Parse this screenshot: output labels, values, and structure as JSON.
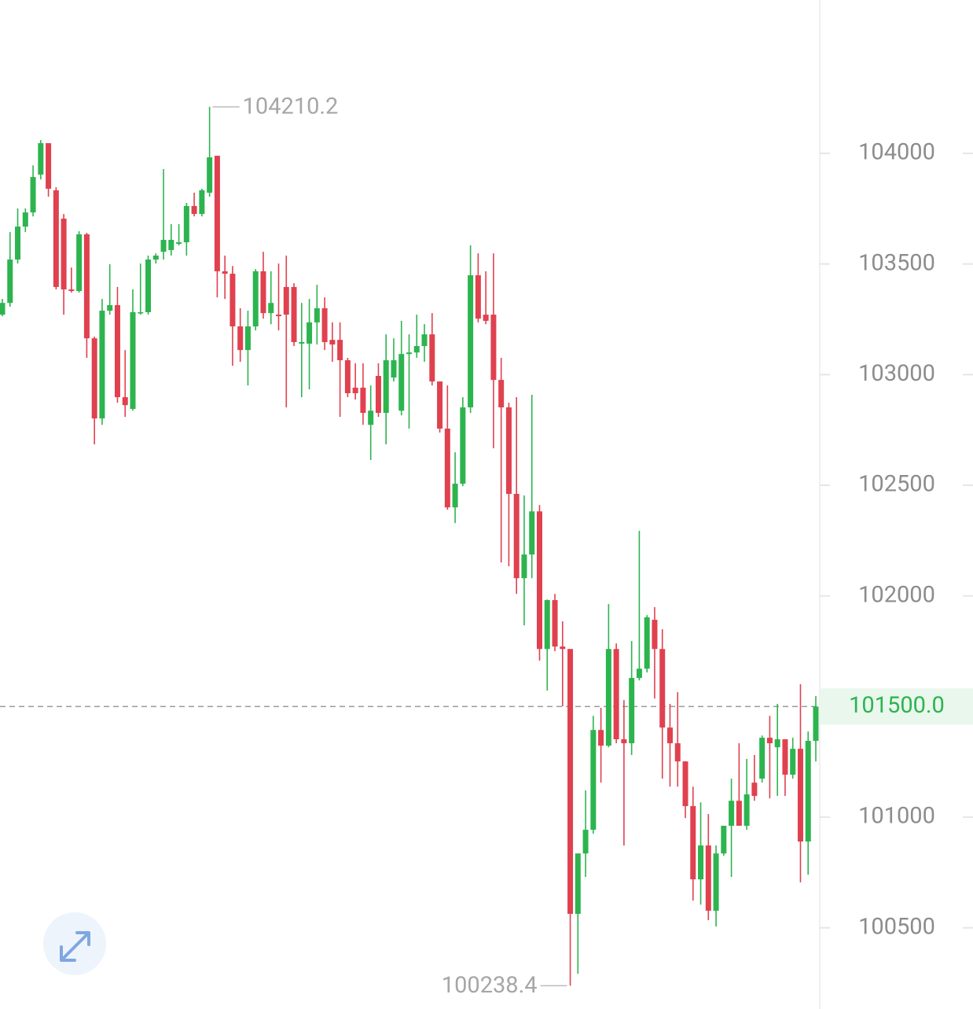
{
  "chart_data": {
    "type": "candlestick",
    "up_color": "#2db44f",
    "down_color": "#e0414f",
    "ylim": [
      100133,
      104693
    ],
    "yticks": [
      100500,
      101000,
      101500,
      102000,
      102500,
      103000,
      103500,
      104000
    ],
    "open": [
      103271,
      103324,
      103520,
      103669,
      103733,
      103904,
      104046,
      103833,
      103705,
      103385,
      103378,
      103634,
      103164,
      102802,
      103289,
      103314,
      102898,
      102845,
      103278,
      103282,
      103520,
      103555,
      103563,
      103591,
      103598,
      103762,
      103726,
      103822,
      103989,
      103467,
      103456,
      103218,
      103111,
      103218,
      103467,
      103278,
      103271,
      103396,
      103396,
      103140,
      103140,
      103236,
      103300,
      103157,
      103157,
      103065,
      102941,
      102941,
      102773,
      102994,
      102827,
      102987,
      102837,
      103093,
      103100,
      103129,
      103182,
      102969,
      102756,
      102400,
      102507,
      102852,
      103449,
      103271,
      103271,
      102976,
      102852,
      102461,
      102080,
      102187,
      102382,
      101760,
      101981,
      101771,
      101760,
      100563,
      100836,
      100943,
      101394,
      101323,
      101760,
      101352,
      101334,
      101629,
      101671,
      101892,
      101760,
      101405,
      101334,
      101252,
      101050,
      100719,
      100872,
      100577,
      100836,
      100961,
      101074,
      100961,
      101156,
      101174,
      101359,
      101316,
      101352,
      101192,
      101309,
      100890,
      101345
    ],
    "high": [
      103342,
      103644,
      103751,
      103751,
      103946,
      104060,
      104046,
      103847,
      103726,
      103484,
      103648,
      103641,
      103172,
      103342,
      103499,
      103396,
      103111,
      103385,
      103502,
      103538,
      103548,
      103929,
      103680,
      103680,
      103776,
      103822,
      103840,
      104210.2,
      103989,
      103538,
      103491,
      103300,
      103289,
      103477,
      103555,
      103467,
      103502,
      103538,
      103413,
      103324,
      103342,
      103406,
      103349,
      103236,
      103236,
      103076,
      103051,
      103051,
      102951,
      103051,
      103182,
      103164,
      103243,
      103182,
      103271,
      103228,
      103278,
      102969,
      102951,
      102649,
      102898,
      103584,
      103548,
      103467,
      103548,
      103076,
      102873,
      102898,
      102454,
      102909,
      102411,
      101984,
      102009,
      101885,
      101760,
      100836,
      101121,
      101458,
      101494,
      101963,
      101785,
      101529,
      101796,
      102294,
      101913,
      101949,
      101849,
      101512,
      101565,
      101252,
      101138,
      101067,
      101014,
      100872,
      100961,
      101174,
      101334,
      101263,
      101281,
      101369,
      101458,
      101512,
      101352,
      101359,
      101601,
      101387,
      101547
    ],
    "low": [
      103264,
      103307,
      103502,
      103644,
      103715,
      103882,
      103804,
      103385,
      103271,
      103371,
      103371,
      103076,
      102685,
      102773,
      103271,
      102873,
      102809,
      102837,
      103271,
      103271,
      103502,
      103520,
      103538,
      103584,
      103538,
      103715,
      103715,
      103804,
      103349,
      103342,
      103040,
      103058,
      102951,
      103200,
      103253,
      103228,
      103200,
      102852,
      103129,
      102898,
      102933,
      103136,
      103111,
      103058,
      102809,
      102898,
      102887,
      102773,
      102614,
      102809,
      102685,
      102969,
      102816,
      102756,
      103076,
      103058,
      102951,
      102738,
      102390,
      102329,
      102496,
      102827,
      103236,
      103228,
      102667,
      102151,
      102134,
      102009,
      101867,
      102080,
      101707,
      101572,
      101750,
      101501,
      100238.4,
      100292,
      100730,
      100925,
      101156,
      101316,
      101334,
      100872,
      101281,
      101618,
      101654,
      101536,
      101174,
      101138,
      101138,
      100996,
      100623,
      100605,
      100534,
      100506,
      100826,
      100730,
      100961,
      100943,
      101074,
      101156,
      101085,
      101096,
      101096,
      101174,
      100705,
      100740,
      101252
    ],
    "close": [
      103324,
      103520,
      103669,
      103733,
      103893,
      104046,
      103840,
      103396,
      103385,
      103378,
      103634,
      103164,
      102802,
      103289,
      103314,
      102898,
      102862,
      103282,
      103282,
      103520,
      103538,
      103609,
      103609,
      103598,
      103762,
      103726,
      103833,
      103982,
      103467,
      103456,
      103218,
      103111,
      103218,
      103467,
      103278,
      103324,
      103264,
      103271,
      103147,
      103147,
      103236,
      103300,
      103147,
      103136,
      103065,
      102916,
      102916,
      102827,
      102837,
      102827,
      103065,
      103065,
      103093,
      103100,
      103129,
      103182,
      102969,
      102756,
      102400,
      102507,
      102852,
      103449,
      103253,
      103243,
      102976,
      102852,
      102461,
      102080,
      102187,
      102382,
      101760,
      101981,
      101771,
      101760,
      100563,
      100836,
      100943,
      101394,
      101323,
      101760,
      101352,
      101334,
      101629,
      101671,
      101903,
      101760,
      101405,
      101334,
      101252,
      101050,
      100719,
      100872,
      100577,
      100836,
      100961,
      101074,
      100961,
      101103,
      101096,
      101359,
      101334,
      101352,
      101192,
      101309,
      100890,
      101345,
      101500
    ],
    "last_price": {
      "value": 101500,
      "label": "101500.0"
    }
  }
}
